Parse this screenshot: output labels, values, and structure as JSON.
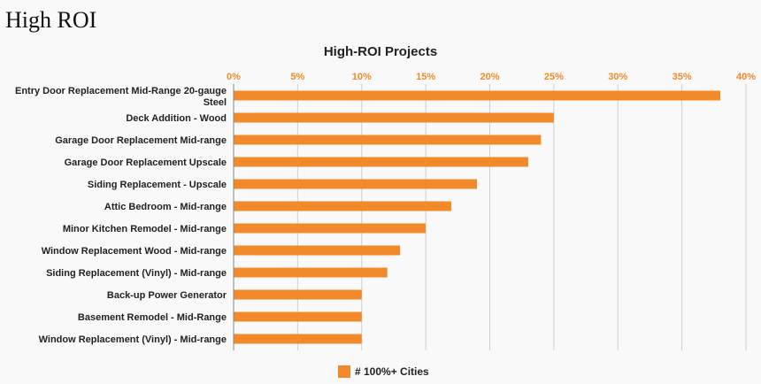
{
  "page": {
    "heading": "High ROI"
  },
  "chart_data": {
    "type": "bar",
    "orientation": "horizontal",
    "title": "High-ROI Projects",
    "categories": [
      "Entry Door Replacement Mid-Range 20-gauge Steel",
      "Deck Addition - Wood",
      "Garage Door Replacement Mid-range",
      "Garage Door Replacement Upscale",
      "Siding Replacement - Upscale",
      "Attic Bedroom - Mid-range",
      "Minor Kitchen Remodel - Mid-range",
      "Window Replacement Wood - Mid-range",
      "Siding Replacement (Vinyl) - Mid-range",
      "Back-up Power Generator",
      "Basement Remodel - Mid-Range",
      "Window Replacement (Vinyl) - Mid-range"
    ],
    "series": [
      {
        "name": "# 100%+ Cities",
        "color": "#f28a2b",
        "values": [
          38,
          25,
          24,
          23,
          19,
          17,
          15,
          13,
          12,
          10,
          10,
          10
        ]
      }
    ],
    "xlim": [
      0,
      40
    ],
    "xticks": [
      "0%",
      "5%",
      "10%",
      "15%",
      "20%",
      "25%",
      "30%",
      "35%",
      "40%"
    ],
    "xaxis_position": "top",
    "grid": true,
    "legend": "bottom"
  }
}
